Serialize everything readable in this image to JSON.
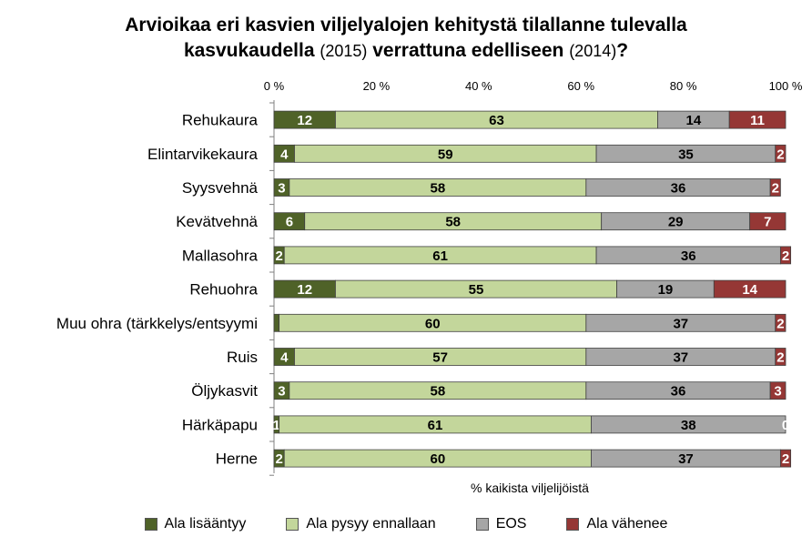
{
  "chart_data": {
    "type": "bar",
    "orientation": "horizontal",
    "stacked": true,
    "title_parts": [
      {
        "text": "Arvioikaa eri kasvien viljelyalojen kehitystä tilallanne tulevalla",
        "bold": true
      },
      {
        "text": "kasvukaudella",
        "bold": true
      },
      {
        "text": "(2015)",
        "bold": false
      },
      {
        "text": "verrattuna edelliseen",
        "bold": true
      },
      {
        "text": "(2014)",
        "bold": false
      },
      {
        "text": "?",
        "bold": true
      }
    ],
    "title_line1": "Arvioikaa eri kasvien viljelyalojen kehitystä tilallanne tulevalla",
    "title_line2_a": "kasvukaudella",
    "title_line2_b": "(2015)",
    "title_line2_c": "verrattuna edelliseen",
    "title_line2_d": "(2014)",
    "title_line2_e": "?",
    "xlabel": "% kaikista viljelijöistä",
    "xlim": [
      0,
      100
    ],
    "x_ticks": [
      "0 %",
      "20 %",
      "40 %",
      "60 %",
      "80 %",
      "100 %"
    ],
    "legend_position": "bottom",
    "categories": [
      "Rehukaura",
      "Elintarvikekaura",
      "Syysvehnä",
      "Kevätvehnä",
      "Mallasohra",
      "Rehuohra",
      "Muu ohra (tärkkelys/entsyymi",
      "Ruis",
      "Öljykasvit",
      "Härkäpapu",
      "Herne"
    ],
    "series": [
      {
        "name": "Ala lisääntyy",
        "color": "#4f6228",
        "values": [
          12,
          4,
          3,
          6,
          2,
          12,
          1,
          4,
          3,
          1,
          2
        ],
        "labels": [
          "12",
          "4",
          "3",
          "6",
          "2",
          "12",
          "",
          "4",
          "3",
          "1",
          "2"
        ]
      },
      {
        "name": "Ala pysyy ennallaan",
        "color": "#c3d69b",
        "values": [
          63,
          59,
          58,
          58,
          61,
          55,
          60,
          57,
          58,
          61,
          60
        ],
        "labels": [
          "63",
          "59",
          "58",
          "58",
          "61",
          "55",
          "60",
          "57",
          "58",
          "61",
          "60"
        ]
      },
      {
        "name": "EOS",
        "color": "#a6a6a6",
        "values": [
          14,
          35,
          36,
          29,
          36,
          19,
          37,
          37,
          36,
          38,
          37
        ],
        "labels": [
          "14",
          "35",
          "36",
          "29",
          "36",
          "19",
          "37",
          "37",
          "36",
          "38",
          "37"
        ]
      },
      {
        "name": "Ala vähenee",
        "color": "#953735",
        "values": [
          11,
          2,
          2,
          7,
          2,
          14,
          2,
          2,
          3,
          0,
          2
        ],
        "labels": [
          "11",
          "2",
          "2",
          "7",
          "2",
          "14",
          "2",
          "2",
          "3",
          "0",
          "2"
        ]
      }
    ]
  }
}
